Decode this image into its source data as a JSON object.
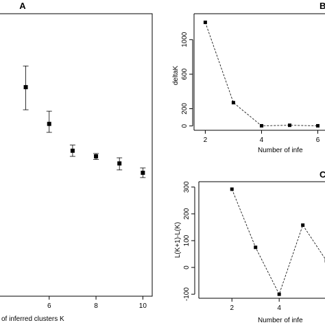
{
  "chart_data": [
    {
      "panel": "A",
      "type": "scatter",
      "title": "A",
      "xlabel": "of inferred clusters K",
      "ylabel": "",
      "xlim": [
        3.9,
        10.4
      ],
      "ylim": [
        0,
        1
      ],
      "xticks": [
        6,
        8,
        10
      ],
      "xtick_labels": [
        "6",
        "8",
        "10"
      ],
      "x": [
        5,
        6,
        7,
        8,
        9,
        10
      ],
      "y": [
        0.74,
        0.61,
        0.515,
        0.495,
        0.47,
        0.437
      ],
      "err_low": [
        0.66,
        0.58,
        0.495,
        0.484,
        0.447,
        0.42
      ],
      "err_high": [
        0.815,
        0.655,
        0.535,
        0.505,
        0.49,
        0.454
      ],
      "grid": false,
      "legend": "none"
    },
    {
      "panel": "B",
      "type": "line",
      "title": "B",
      "xlabel": "Number of infe",
      "ylabel": "deltaK",
      "xlim": [
        1.6,
        6.5
      ],
      "ylim": [
        -50,
        1300
      ],
      "xticks": [
        2,
        4,
        6
      ],
      "xtick_labels": [
        "2",
        "4",
        "6"
      ],
      "yticks": [
        0,
        200,
        600,
        1000
      ],
      "ytick_labels": [
        "0",
        "200",
        "600",
        "1000"
      ],
      "x": [
        2,
        3,
        4,
        5,
        6
      ],
      "y": [
        1200,
        270,
        2,
        8,
        2
      ],
      "line_style": "dashed",
      "grid": false,
      "legend": "none"
    },
    {
      "panel": "C",
      "type": "line",
      "title": "C",
      "xlabel": "Number of infe",
      "ylabel": "L(K+1)-L(K)",
      "xlim": [
        0.6,
        6.2
      ],
      "ylim": [
        -115,
        320
      ],
      "xticks": [
        2,
        4
      ],
      "xtick_labels": [
        "2",
        "4"
      ],
      "yticks": [
        -100,
        0,
        100,
        200,
        300
      ],
      "ytick_labels": [
        "-100",
        "0",
        "100",
        "200",
        "300"
      ],
      "x": [
        2,
        3,
        4,
        5,
        6
      ],
      "y": [
        292,
        75,
        -100,
        158,
        25
      ],
      "line_style": "dashed",
      "grid": false,
      "legend": "none"
    }
  ]
}
